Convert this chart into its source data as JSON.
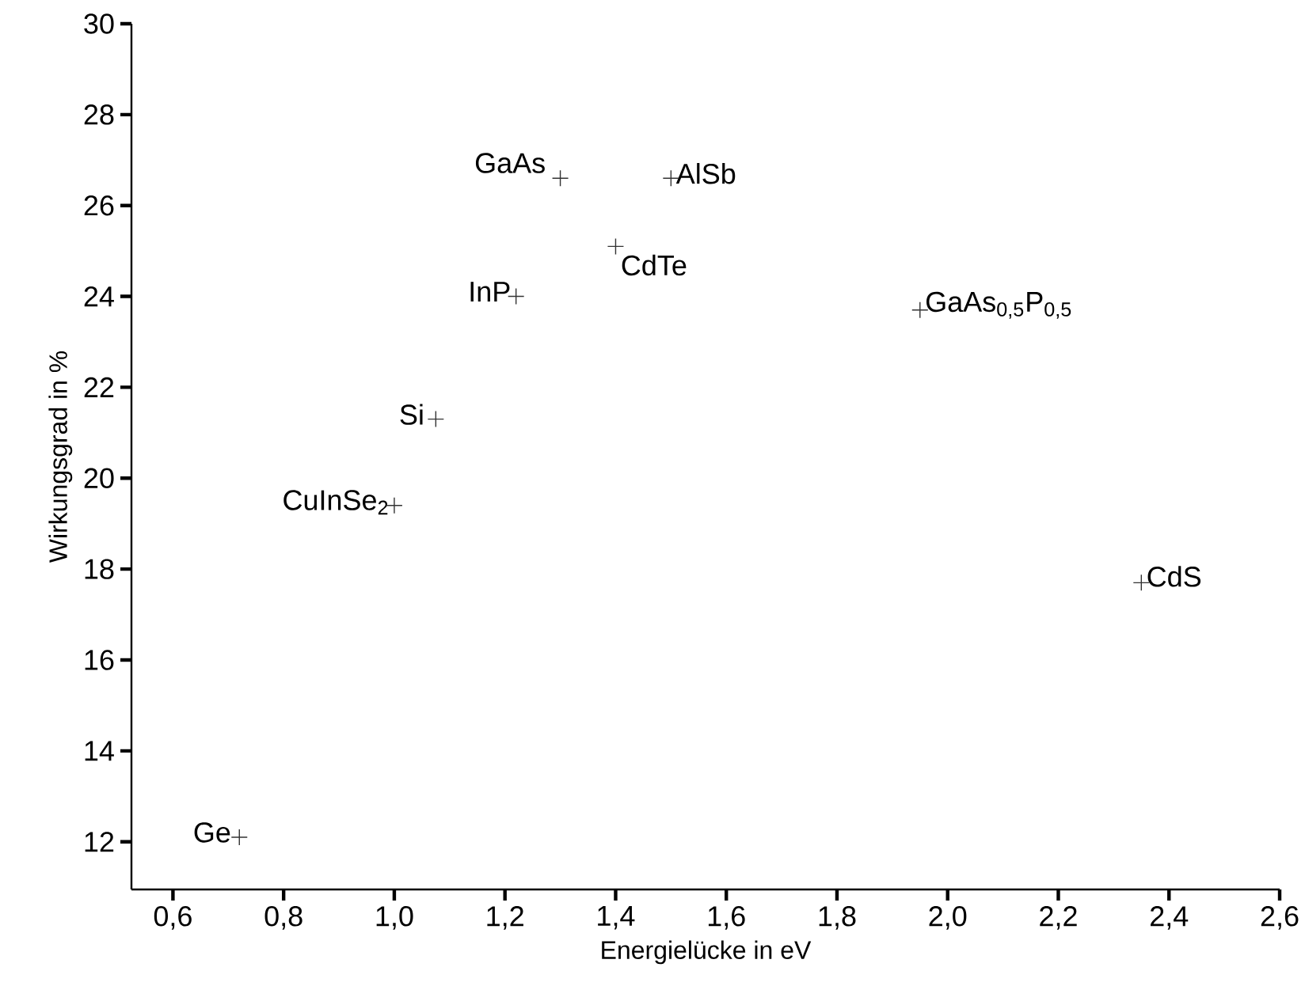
{
  "chart_data": {
    "type": "scatter",
    "xlabel": "Energielücke in eV",
    "ylabel": "Wirkungsgrad in %",
    "x": [
      0.72,
      1.0,
      1.075,
      1.22,
      1.3,
      1.4,
      1.5,
      1.95,
      2.35
    ],
    "series": [
      {
        "color": "#333333",
        "values": [
          12.1,
          19.4,
          21.3,
          24.0,
          26.6,
          25.1,
          26.6,
          23.7,
          17.7
        ]
      }
    ],
    "marker": "cross",
    "xlim": [
      0.525,
      2.6
    ],
    "ylim": [
      10.95,
      30
    ],
    "xticks": [
      {
        "value": 0.6,
        "label": "0,6"
      },
      {
        "value": 0.8,
        "label": "0,8"
      },
      {
        "value": 1.0,
        "label": "1,0"
      },
      {
        "value": 1.2,
        "label": "1,2"
      },
      {
        "value": 1.4,
        "label": "1,4"
      },
      {
        "value": 1.6,
        "label": "1,6"
      },
      {
        "value": 1.8,
        "label": "1,8"
      },
      {
        "value": 2.0,
        "label": "2,0"
      },
      {
        "value": 2.2,
        "label": "2,2"
      },
      {
        "value": 2.4,
        "label": "2,4"
      },
      {
        "value": 2.6,
        "label": "2,6"
      }
    ],
    "yticks": [
      12,
      14,
      16,
      18,
      20,
      22,
      24,
      26,
      28,
      30
    ],
    "annotations": [
      {
        "text": "Ge",
        "x": 0.72,
        "y": 12.1
      },
      {
        "text": "CuInSe$_{2}$",
        "x": 1.0,
        "y": 19.4
      },
      {
        "text": "Si",
        "x": 1.075,
        "y": 21.3
      },
      {
        "text": "InP",
        "x": 1.22,
        "y": 24.0
      },
      {
        "text": "GaAs",
        "x": 1.3,
        "y": 26.6
      },
      {
        "text": "CdTe",
        "x": 1.4,
        "y": 25.1
      },
      {
        "text": "AlSb",
        "x": 1.5,
        "y": 26.6
      },
      {
        "text": "GaAs$_{0,5}$P$_{0,5}$",
        "x": 1.95,
        "y": 23.7
      },
      {
        "text": "CdS",
        "x": 2.35,
        "y": 17.7
      }
    ]
  }
}
